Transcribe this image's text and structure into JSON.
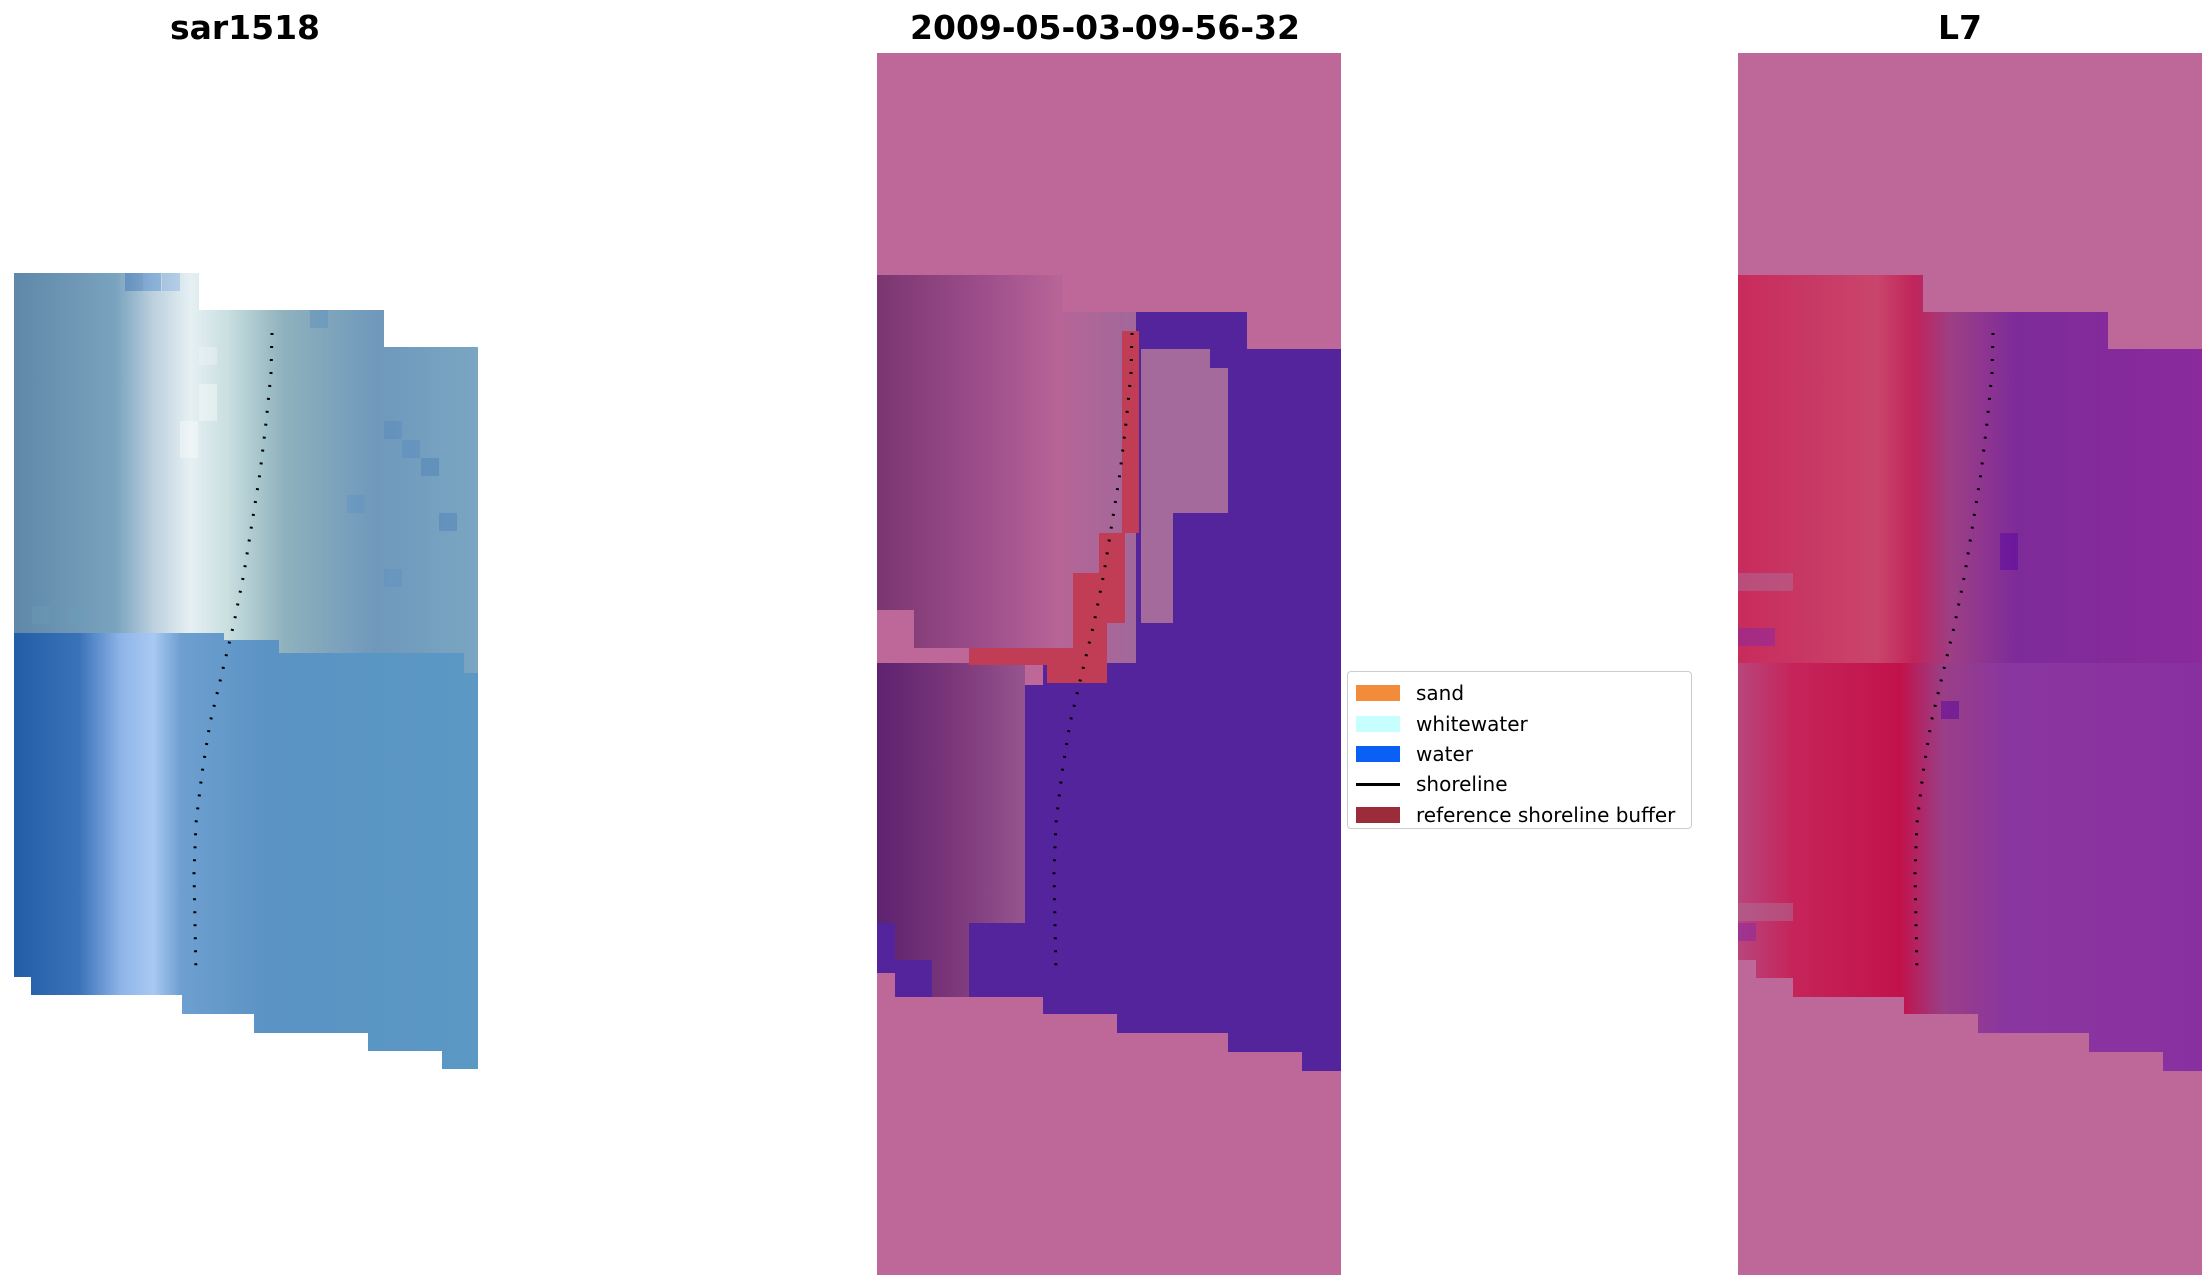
{
  "titles": {
    "left": "sar1518",
    "middle": "2009-05-03-09-56-32",
    "right": "L7"
  },
  "legend": {
    "items": [
      {
        "label": "sand",
        "color": "#f28b3a",
        "kind": "patch"
      },
      {
        "label": "whitewater",
        "color": "#c6fffd",
        "kind": "patch"
      },
      {
        "label": "water",
        "color": "#0a5ff5",
        "kind": "patch"
      },
      {
        "label": "shoreline",
        "color": "#000000",
        "kind": "line"
      },
      {
        "label": "reference shoreline buffer",
        "color": "#9b2d3a",
        "kind": "patch"
      }
    ]
  },
  "colors": {
    "background_mask": "#bd6898",
    "water_class": "#53249c",
    "buffer": "#c13d55",
    "shoreline": "#000000"
  }
}
